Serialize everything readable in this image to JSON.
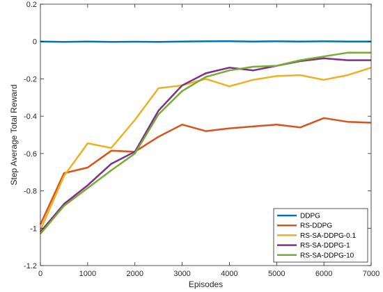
{
  "chart_data": {
    "type": "line",
    "xlabel": "Episodes",
    "ylabel": "Step Average Total Reward",
    "xlim": [
      0,
      7000
    ],
    "ylim": [
      -1.2,
      0.2
    ],
    "x_ticks": [
      "0",
      "1000",
      "2000",
      "3000",
      "4000",
      "5000",
      "6000",
      "7000"
    ],
    "y_ticks": [
      "0.2",
      "0",
      "-0.2",
      "-0.4",
      "-0.6",
      "-0.8",
      "-1",
      "-1.2"
    ],
    "grid": false,
    "legend_position": "bottom-right",
    "x": [
      0,
      500,
      1000,
      1500,
      2000,
      2500,
      3000,
      3500,
      4000,
      4500,
      5000,
      5500,
      6000,
      6500,
      7000
    ],
    "series": [
      {
        "name": "DDPG",
        "color": "#0072BD",
        "values": [
          0.0,
          -0.002,
          0.0,
          -0.002,
          -0.001,
          -0.002,
          0.0,
          0.001,
          0.002,
          0.0,
          0.001,
          0.0,
          0.001,
          0.0,
          0.0
        ]
      },
      {
        "name": "RS-DDPG",
        "color": "#D95319",
        "values": [
          -0.98,
          -0.705,
          -0.675,
          -0.585,
          -0.59,
          -0.51,
          -0.445,
          -0.48,
          -0.465,
          -0.455,
          -0.445,
          -0.46,
          -0.41,
          -0.43,
          -0.435
        ]
      },
      {
        "name": "RS-SA-DDPG-0.1",
        "color": "#EDB120",
        "values": [
          -1.01,
          -0.72,
          -0.545,
          -0.57,
          -0.42,
          -0.25,
          -0.235,
          -0.2,
          -0.24,
          -0.205,
          -0.185,
          -0.18,
          -0.205,
          -0.18,
          -0.14
        ]
      },
      {
        "name": "RS-SA-DDPG-1",
        "color": "#7E2F8E",
        "values": [
          -1.02,
          -0.87,
          -0.77,
          -0.655,
          -0.59,
          -0.37,
          -0.235,
          -0.17,
          -0.14,
          -0.155,
          -0.13,
          -0.105,
          -0.09,
          -0.1,
          -0.1
        ]
      },
      {
        "name": "RS-SA-DDPG-10",
        "color": "#77AC30",
        "values": [
          -1.03,
          -0.88,
          -0.785,
          -0.69,
          -0.6,
          -0.39,
          -0.265,
          -0.19,
          -0.155,
          -0.135,
          -0.13,
          -0.1,
          -0.08,
          -0.06,
          -0.06
        ]
      }
    ]
  }
}
